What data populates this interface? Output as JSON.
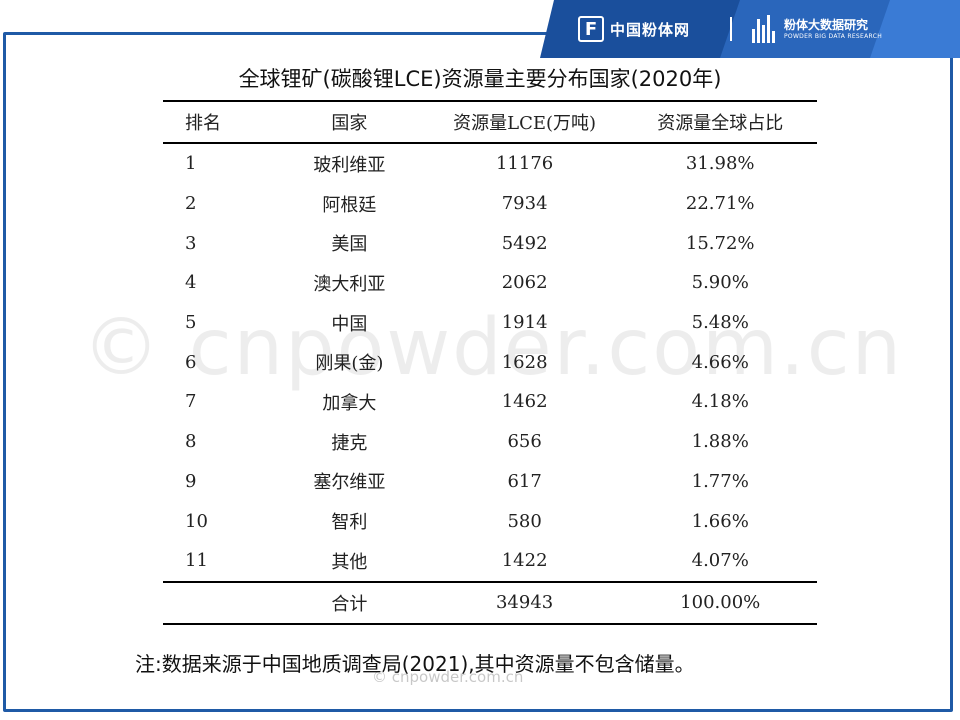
{
  "banner": {
    "logo_letter": "F",
    "brand_left": "中国粉体网",
    "brand_right_cn": "粉体大数据研究",
    "brand_right_en": "POWDER BIG DATA RESEARCH"
  },
  "colors": {
    "frame": "#1f5aa6",
    "banner_dark": "#1a4f9c",
    "banner_light": "#3a7bd5"
  },
  "title": "全球锂矿(碳酸锂LCE)资源量主要分布国家(2020年)",
  "table": {
    "headers": [
      "排名",
      "国家",
      "资源量LCE(万吨)",
      "资源量全球占比"
    ],
    "rows": [
      [
        "1",
        "玻利维亚",
        "11176",
        "31.98%"
      ],
      [
        "2",
        "阿根廷",
        "7934",
        "22.71%"
      ],
      [
        "3",
        "美国",
        "5492",
        "15.72%"
      ],
      [
        "4",
        "澳大利亚",
        "2062",
        "5.90%"
      ],
      [
        "5",
        "中国",
        "1914",
        "5.48%"
      ],
      [
        "6",
        "刚果(金)",
        "1628",
        "4.66%"
      ],
      [
        "7",
        "加拿大",
        "1462",
        "4.18%"
      ],
      [
        "8",
        "捷克",
        "656",
        "1.88%"
      ],
      [
        "9",
        "塞尔维亚",
        "617",
        "1.77%"
      ],
      [
        "10",
        "智利",
        "580",
        "1.66%"
      ],
      [
        "11",
        "其他",
        "1422",
        "4.07%"
      ]
    ],
    "total": [
      "",
      "合计",
      "34943",
      "100.00%"
    ]
  },
  "note": "注:数据来源于中国地质调查局(2021),其中资源量不包含储量。",
  "watermark_large": "© cnpowder.com.cn",
  "watermark_small": "© cnpowder.com.cn"
}
